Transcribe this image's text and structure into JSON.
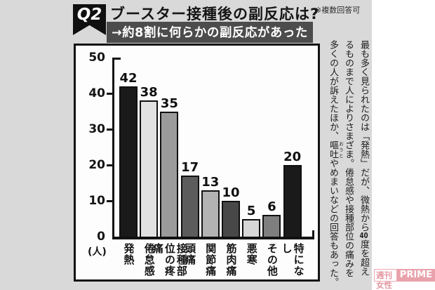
{
  "header": {
    "badge": "Q2",
    "title": "ブースター接種後の副反応は?",
    "note": "※複数回答可",
    "subtitle": "→約8割に何らかの副反応があった"
  },
  "chart_data": {
    "type": "bar",
    "title": "ブースター接種後の副反応は?",
    "subtitle": "→約8割に何らかの副反応があった",
    "categories": [
      "発熱",
      "倦怠感",
      "接種部位の疼痛",
      "頭痛",
      "関節痛",
      "筋肉痛",
      "悪寒",
      "その他",
      "特になし"
    ],
    "values": [
      42,
      38,
      35,
      17,
      13,
      10,
      5,
      6,
      20
    ],
    "bar_colors": [
      "#1a1a1a",
      "#e2e2e2",
      "#9b9b9b",
      "#5c5c5c",
      "#b3b3b3",
      "#484848",
      "#d7d7d7",
      "#7f7f7f",
      "#1a1a1a"
    ],
    "xlabel": "",
    "ylabel": "(人)",
    "ylim": [
      0,
      50
    ],
    "yticks": [
      0,
      10,
      20,
      30,
      40,
      50
    ],
    "grid": false,
    "value_labels": true,
    "legend": "none"
  },
  "commentary": {
    "lines": [
      "最も多く見られたのは「発熱」だが、微熱から40度を超え",
      "るものまで人によりさまざま。倦怠感や接種部位の痛みを",
      "多くの人が訴えたほか、嘔吐やめまいなどの回答もあった。"
    ],
    "ruby": {
      "base": "嘔吐",
      "text": "おうと"
    }
  },
  "watermark": {
    "left": "週刊女性",
    "right": "PRIME",
    "accent_color": "#e6929d"
  }
}
